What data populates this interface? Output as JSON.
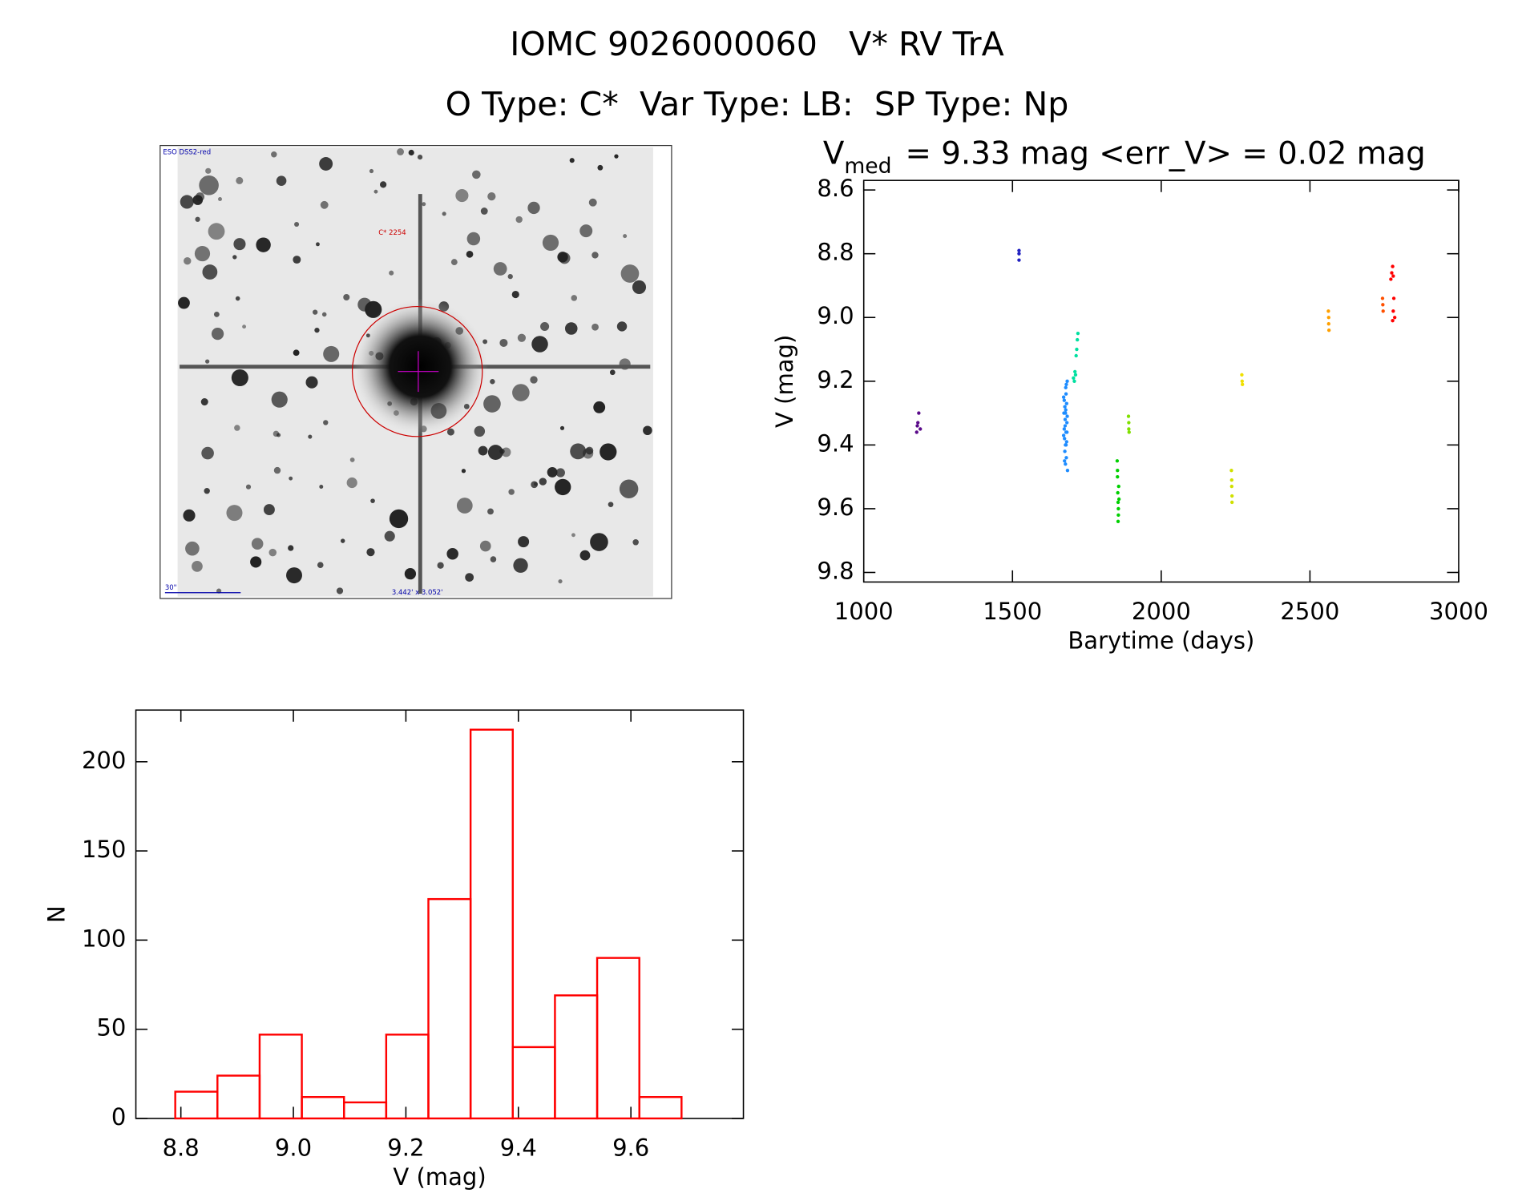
{
  "header": {
    "title": "IOMC 9026000060   V* RV TrA",
    "subtitle": "O Type: C*  Var Type: LB:  SP Type: Np"
  },
  "image": {
    "survey": "ESO DSS2-red",
    "object": "C* 2254",
    "scale": "30\"",
    "size": "3.442' x 3.052'"
  },
  "chart_data": [
    {
      "type": "scatter",
      "title": {
        "main": "V",
        "sub": "med",
        "rest": "= 9.33 mag <err_V> = 0.02 mag"
      },
      "x_label": "Barytime (days)",
      "y_label": "V (mag)",
      "xlim": [
        1000,
        3000
      ],
      "xticks": [
        1000,
        1500,
        2000,
        2500,
        3000
      ],
      "ylim": [
        8.57,
        9.83
      ],
      "y_inverted": true,
      "yticks": [
        8.6,
        8.8,
        {
          "value": 9.0,
          "label": "9.0"
        },
        9.2,
        9.4,
        9.6,
        9.8
      ],
      "series": [
        {
          "color": "#5a0a8a",
          "x": [
            1178,
            1180,
            1182,
            1185,
            1190
          ],
          "values": [
            9.36,
            9.34,
            9.33,
            9.3,
            9.35
          ]
        },
        {
          "color": "#2020c0",
          "x": [
            1522,
            1522,
            1522
          ],
          "values": [
            8.79,
            8.8,
            8.82
          ]
        },
        {
          "color": "#1e8cff",
          "x": [
            1672,
            1673,
            1674,
            1675,
            1676,
            1677,
            1678,
            1679,
            1680,
            1681,
            1682,
            1683,
            1684,
            1685,
            1672,
            1674,
            1676,
            1678,
            1680,
            1682,
            1684,
            1675,
            1677,
            1679,
            1681,
            1683,
            1680,
            1678
          ],
          "values": [
            9.25,
            9.3,
            9.35,
            9.38,
            9.28,
            9.32,
            9.4,
            9.22,
            9.36,
            9.44,
            9.27,
            9.33,
            9.2,
            9.48,
            9.37,
            9.26,
            9.42,
            9.3,
            9.24,
            9.39,
            9.31,
            9.45,
            9.34,
            9.29,
            9.21,
            9.36,
            9.4,
            9.46
          ]
        },
        {
          "color": "#00e0a0",
          "x": [
            1705,
            1708,
            1710,
            1712,
            1714,
            1716,
            1718,
            1720
          ],
          "values": [
            9.19,
            9.2,
            9.17,
            9.18,
            9.12,
            9.1,
            9.07,
            9.05
          ]
        },
        {
          "color": "#00d000",
          "x": [
            1852,
            1853,
            1854,
            1855,
            1856,
            1857,
            1858,
            1855,
            1853,
            1856
          ],
          "values": [
            9.45,
            9.5,
            9.55,
            9.58,
            9.62,
            9.53,
            9.57,
            9.64,
            9.48,
            9.6
          ]
        },
        {
          "color": "#80e000",
          "x": [
            1890,
            1891,
            1891,
            1892
          ],
          "values": [
            9.31,
            9.33,
            9.35,
            9.36
          ]
        },
        {
          "color": "#d0e000",
          "x": [
            2236,
            2237,
            2237,
            2238,
            2238
          ],
          "values": [
            9.48,
            9.51,
            9.53,
            9.56,
            9.58
          ]
        },
        {
          "color": "#f0e000",
          "x": [
            2271,
            2272,
            2273
          ],
          "values": [
            9.18,
            9.2,
            9.21
          ]
        },
        {
          "color": "#ffa000",
          "x": [
            2562,
            2563,
            2563,
            2564
          ],
          "values": [
            8.98,
            9.0,
            9.02,
            9.04
          ]
        },
        {
          "color": "#ff5000",
          "x": [
            2744,
            2745,
            2746
          ],
          "values": [
            8.94,
            8.96,
            8.98
          ]
        },
        {
          "color": "#ff0000",
          "x": [
            2772,
            2775,
            2778,
            2780,
            2782,
            2785,
            2778,
            2780
          ],
          "values": [
            8.88,
            8.86,
            8.84,
            8.87,
            8.94,
            9.0,
            9.01,
            8.98
          ]
        }
      ]
    },
    {
      "type": "histogram",
      "x_label": "V (mag)",
      "y_label": "N",
      "color": "#ff0000",
      "xlim": [
        8.72,
        9.8
      ],
      "xticks": [
        8.8,
        {
          "value": 9.0,
          "label": "9.0"
        },
        9.2,
        9.4,
        9.6
      ],
      "ylim": [
        0,
        229
      ],
      "yticks": [
        0,
        50,
        100,
        150,
        200
      ],
      "bins": [
        8.79,
        8.865,
        8.94,
        9.015,
        9.09,
        9.165,
        9.24,
        9.315,
        9.39,
        9.465,
        9.54,
        9.615,
        9.69
      ],
      "values": [
        15,
        24,
        47,
        12,
        9,
        47,
        123,
        218,
        40,
        69,
        90,
        12
      ]
    }
  ]
}
